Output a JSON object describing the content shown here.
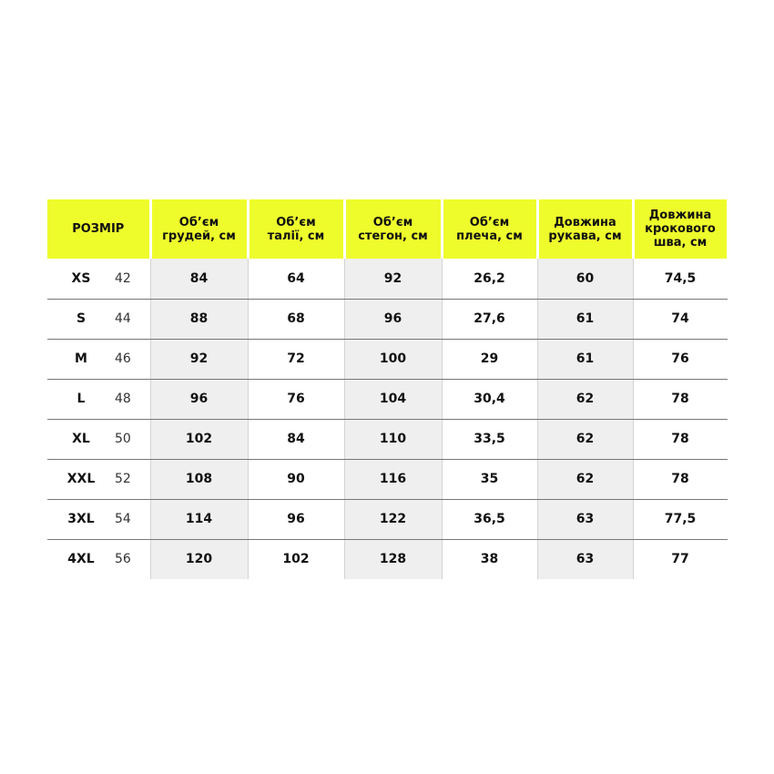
{
  "table": {
    "header": [
      [
        "РОЗМІР"
      ],
      [
        "Об’єм",
        "грудей, см"
      ],
      [
        "Об’єм",
        "талії, см"
      ],
      [
        "Об’єм",
        "стегон, см"
      ],
      [
        "Об’єм",
        "плеча, см"
      ],
      [
        "Довжина",
        "рукава, см"
      ],
      [
        "Довжина",
        "крокового",
        "шва, см"
      ]
    ],
    "rows": [
      {
        "size": "XS",
        "number": "42",
        "values": [
          "84",
          "64",
          "92",
          "26,2",
          "60",
          "74,5"
        ]
      },
      {
        "size": "S",
        "number": "44",
        "values": [
          "88",
          "68",
          "96",
          "27,6",
          "61",
          "74"
        ]
      },
      {
        "size": "M",
        "number": "46",
        "values": [
          "92",
          "72",
          "100",
          "29",
          "61",
          "76"
        ]
      },
      {
        "size": "L",
        "number": "48",
        "values": [
          "96",
          "76",
          "104",
          "30,4",
          "62",
          "78"
        ]
      },
      {
        "size": "XL",
        "number": "50",
        "values": [
          "102",
          "84",
          "110",
          "33,5",
          "62",
          "78"
        ]
      },
      {
        "size": "XXL",
        "number": "52",
        "values": [
          "108",
          "90",
          "116",
          "35",
          "62",
          "78"
        ]
      },
      {
        "size": "3XL",
        "number": "54",
        "values": [
          "114",
          "96",
          "122",
          "36,5",
          "63",
          "77,5"
        ]
      },
      {
        "size": "4XL",
        "number": "56",
        "values": [
          "120",
          "102",
          "128",
          "38",
          "63",
          "77"
        ]
      }
    ]
  }
}
